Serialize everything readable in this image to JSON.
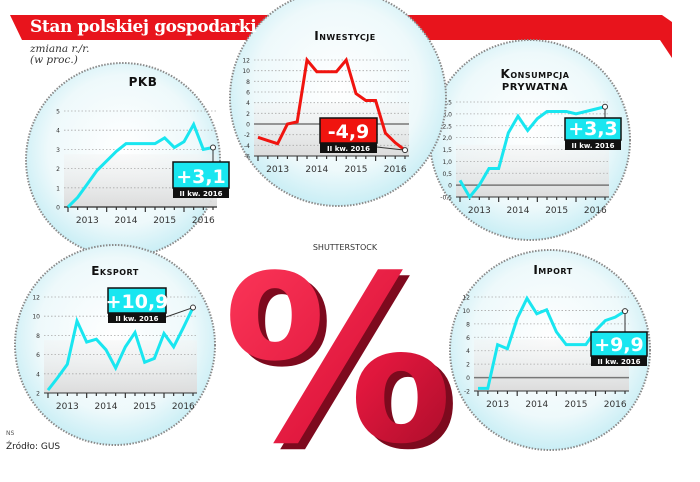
{
  "header": {
    "title": "Stan polskiej gospodarki",
    "subtitle_line1": "zmiana r./r.",
    "subtitle_line2": "(w proc.)"
  },
  "footer": {
    "author": "NS",
    "source": "Źródło: GUS"
  },
  "watermark": "SHUTTERSTOCK",
  "center_symbol": "%",
  "colors": {
    "banner": "#e8141c",
    "cyan": "#19e6f0",
    "red": "#f0140f",
    "callout_label_bg": "#111111",
    "percent_sign": "#e0173d"
  },
  "chart_data": [
    {
      "type": "line",
      "title": "PKB",
      "title2": "",
      "color": "#19e6f0",
      "x": [
        2012.5,
        2012.75,
        2013,
        2013.25,
        2013.5,
        2013.75,
        2014,
        2014.25,
        2014.5,
        2014.75,
        2015,
        2015.25,
        2015.5,
        2015.75,
        2016,
        2016.25
      ],
      "values": [
        0.0,
        0.5,
        1.2,
        1.9,
        2.4,
        2.9,
        3.3,
        3.3,
        3.3,
        3.3,
        3.6,
        3.1,
        3.4,
        4.3,
        3.0,
        3.1
      ],
      "ylim": [
        0,
        5
      ],
      "yticks": [
        "0",
        "1",
        "2",
        "3",
        "4",
        "5"
      ],
      "ytick_values": [
        0,
        1,
        2,
        3,
        4,
        5
      ],
      "xticks": [
        "2013",
        "2014",
        "2015",
        "2016"
      ],
      "callout": {
        "value": "+3,1",
        "label": "II kw. 2016"
      }
    },
    {
      "type": "line",
      "title": "Inwestycje",
      "title2": "",
      "color": "#f0140f",
      "x": [
        2012.5,
        2012.75,
        2013,
        2013.25,
        2013.5,
        2013.75,
        2014,
        2014.25,
        2014.5,
        2014.75,
        2015,
        2015.25,
        2015.5,
        2015.75,
        2016,
        2016.25
      ],
      "values": [
        -2.5,
        -3.1,
        -3.7,
        0.0,
        0.4,
        12.0,
        9.8,
        9.8,
        9.8,
        12.0,
        5.7,
        4.4,
        4.4,
        -1.7,
        -3.5,
        -4.9
      ],
      "ylim": [
        -6,
        12
      ],
      "yticks": [
        "-6",
        "-4",
        "-2",
        "0",
        "2",
        "4",
        "6",
        "8",
        "10",
        "12"
      ],
      "ytick_values": [
        -6,
        -4,
        -2,
        0,
        2,
        4,
        6,
        8,
        10,
        12
      ],
      "xticks": [
        "2013",
        "2014",
        "2015",
        "2016"
      ],
      "callout": {
        "value": "-4,9",
        "label": "II kw. 2016"
      }
    },
    {
      "type": "line",
      "title": "Konsumpcja",
      "title2": "prywatna",
      "color": "#19e6f0",
      "x": [
        2012.5,
        2012.75,
        2013,
        2013.25,
        2013.5,
        2013.75,
        2014,
        2014.25,
        2014.5,
        2014.75,
        2015,
        2015.25,
        2015.5,
        2015.75,
        2016,
        2016.25
      ],
      "values": [
        0.2,
        -0.5,
        0.0,
        0.7,
        0.7,
        2.2,
        2.9,
        2.3,
        2.8,
        3.1,
        3.1,
        3.1,
        3.0,
        3.1,
        3.2,
        3.3
      ],
      "ylim": [
        -0.5,
        3.5
      ],
      "yticks": [
        "-0,5",
        "0",
        "0,5",
        "1,0",
        "1,5",
        "2,0",
        "2,5",
        "3,0",
        "3,5"
      ],
      "ytick_values": [
        -0.5,
        0,
        0.5,
        1,
        1.5,
        2,
        2.5,
        3,
        3.5
      ],
      "xticks": [
        "2013",
        "2014",
        "2015",
        "2016"
      ],
      "callout": {
        "value": "+3,3",
        "label": "II kw. 2016"
      }
    },
    {
      "type": "line",
      "title": "Eksport",
      "title2": "",
      "color": "#19e6f0",
      "x": [
        2012.5,
        2012.75,
        2013,
        2013.25,
        2013.5,
        2013.75,
        2014,
        2014.25,
        2014.5,
        2014.75,
        2015,
        2015.25,
        2015.5,
        2015.75,
        2016,
        2016.25
      ],
      "values": [
        2.3,
        3.6,
        5.0,
        9.5,
        7.3,
        7.6,
        6.5,
        4.6,
        6.8,
        8.3,
        5.2,
        5.6,
        8.2,
        6.8,
        8.8,
        10.9
      ],
      "ylim": [
        2,
        12
      ],
      "yticks": [
        "2",
        "4",
        "6",
        "8",
        "10",
        "12"
      ],
      "ytick_values": [
        2,
        4,
        6,
        8,
        10,
        12
      ],
      "xticks": [
        "2013",
        "2014",
        "2015",
        "2016"
      ],
      "callout": {
        "value": "+10,9",
        "label": "II kw. 2016"
      }
    },
    {
      "type": "line",
      "title": "Import",
      "title2": "",
      "color": "#19e6f0",
      "x": [
        2012.5,
        2012.75,
        2013,
        2013.25,
        2013.5,
        2013.75,
        2014,
        2014.25,
        2014.5,
        2014.75,
        2015,
        2015.25,
        2015.5,
        2015.75,
        2016,
        2016.25
      ],
      "values": [
        -1.6,
        -1.6,
        4.9,
        4.3,
        8.8,
        11.8,
        9.5,
        10.1,
        6.8,
        4.9,
        4.9,
        4.9,
        7.0,
        8.5,
        9.0,
        9.9
      ],
      "ylim": [
        -2,
        12
      ],
      "yticks": [
        "-2",
        "0",
        "2",
        "4",
        "6",
        "8",
        "10",
        "12"
      ],
      "ytick_values": [
        -2,
        0,
        2,
        4,
        6,
        8,
        10,
        12
      ],
      "xticks": [
        "2013",
        "2014",
        "2015",
        "2016"
      ],
      "callout": {
        "value": "+9,9",
        "label": "II kw. 2016"
      }
    }
  ]
}
